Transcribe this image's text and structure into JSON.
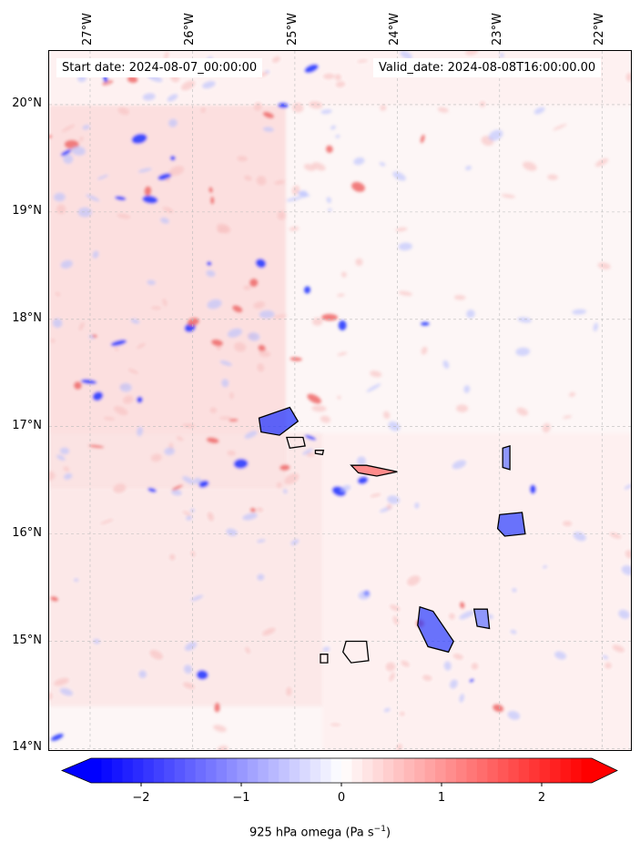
{
  "map": {
    "start_date": "Start date: 2024-08-07_00:00:00",
    "valid_date": "Valid_date: 2024-08-08T16:00:00.00",
    "lat_labels": [
      "20°N",
      "19°N",
      "18°N",
      "17°N",
      "16°N",
      "15°N",
      "14°N"
    ],
    "lon_labels": [
      "27°W",
      "26°W",
      "25°W",
      "24°W",
      "23°W",
      "22°W"
    ],
    "lat_values": [
      20,
      19,
      18,
      17,
      16,
      15,
      14
    ],
    "lon_values": [
      -27,
      -26,
      -25,
      -24,
      -23,
      -22
    ],
    "lon_range": [
      -27.4,
      -21.7
    ],
    "lat_range": [
      13.97,
      20.5
    ],
    "gridlines": true,
    "coastlines": true,
    "region": "Cape Verde islands"
  },
  "colorbar": {
    "title_prefix": "925 hPa omega (Pa s",
    "title_exp": "−1",
    "title_suffix": ")",
    "ticks": [
      "−2",
      "−1",
      "0",
      "1",
      "2"
    ],
    "tick_values": [
      -2,
      -1,
      0,
      1,
      2
    ],
    "range": [
      -2.5,
      2.5
    ],
    "extend": "both",
    "colormap": "bwr",
    "colors": {
      "low": "#0000ff",
      "mid": "#ffffff",
      "high": "#ff0000"
    }
  }
}
